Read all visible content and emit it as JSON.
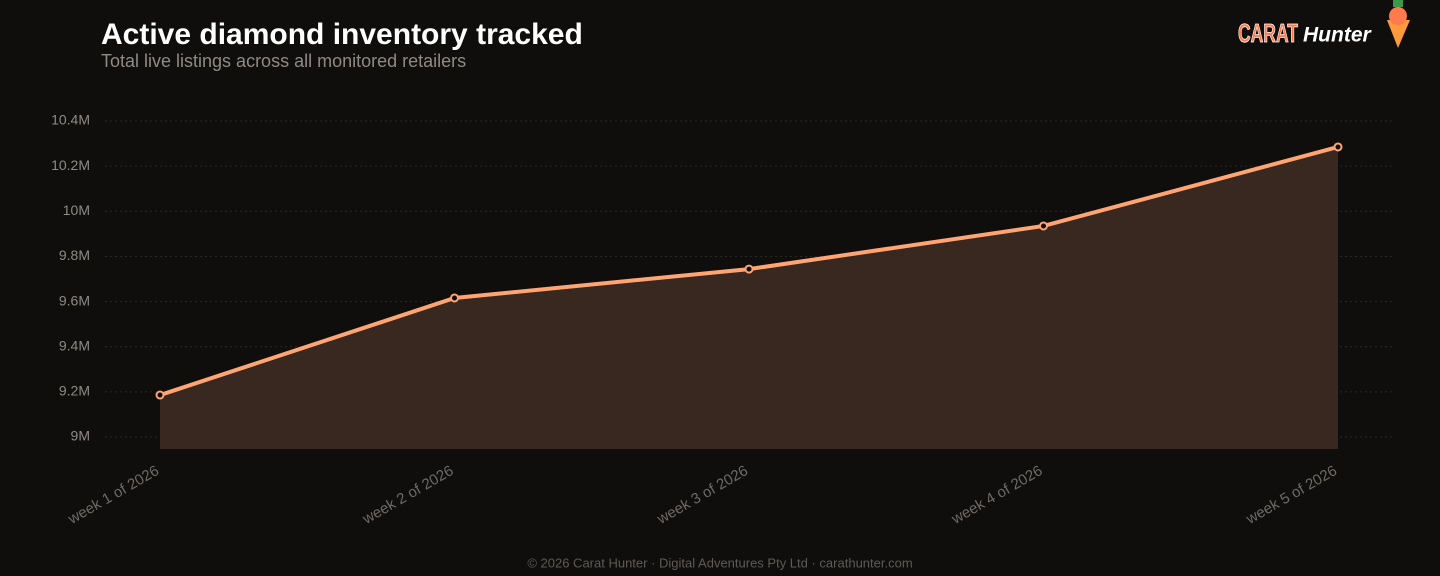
{
  "chart_data": {
    "type": "area",
    "title": "Active diamond inventory tracked",
    "subtitle": "Total live listings across all monitored retailers",
    "categories": [
      "week 1 of 2026",
      "week 2 of 2026",
      "week 3 of 2026",
      "week 4 of 2026",
      "week 5 of 2026"
    ],
    "values": [
      9.186,
      9.616,
      9.744,
      9.935,
      10.285
    ],
    "color": "#ffa472",
    "fill": "#382820",
    "ylim": [
      8.947,
      10.447
    ],
    "yticks": [
      {
        "value": 9,
        "label": "9M"
      },
      {
        "value": 9.2,
        "label": "9.2M"
      },
      {
        "value": 9.4,
        "label": "9.4M"
      },
      {
        "value": 9.6,
        "label": "9.6M"
      },
      {
        "value": 9.8,
        "label": "9.8M"
      },
      {
        "value": 10,
        "label": "10M"
      },
      {
        "value": 10.2,
        "label": "10.2M"
      },
      {
        "value": 10.4,
        "label": "10.4M"
      }
    ],
    "grid": true
  },
  "logo": {
    "brand": "CARAT",
    "name": "Hunter"
  },
  "footer": "© 2026 Carat Hunter · Digital Adventures Pty Ltd · carathunter.com"
}
